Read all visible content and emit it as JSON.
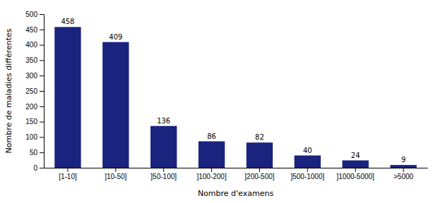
{
  "chart_data": {
    "type": "bar",
    "categories": [
      "[1-10]",
      "]10-50]",
      "]50-100]",
      "]100-200]",
      "]200-500]",
      "]500-1000]",
      "]1000-5000]",
      ">5000"
    ],
    "values": [
      458,
      409,
      136,
      86,
      82,
      40,
      24,
      9
    ],
    "color": "#1A237E",
    "xlabel": "Nombre d'examens",
    "ylabel": "Nombre de maladies différentes",
    "ylim": [
      0,
      500
    ],
    "yticks": [
      0,
      50,
      100,
      150,
      200,
      250,
      300,
      350,
      400,
      450,
      500
    ],
    "data_labels": true,
    "grid": false
  }
}
